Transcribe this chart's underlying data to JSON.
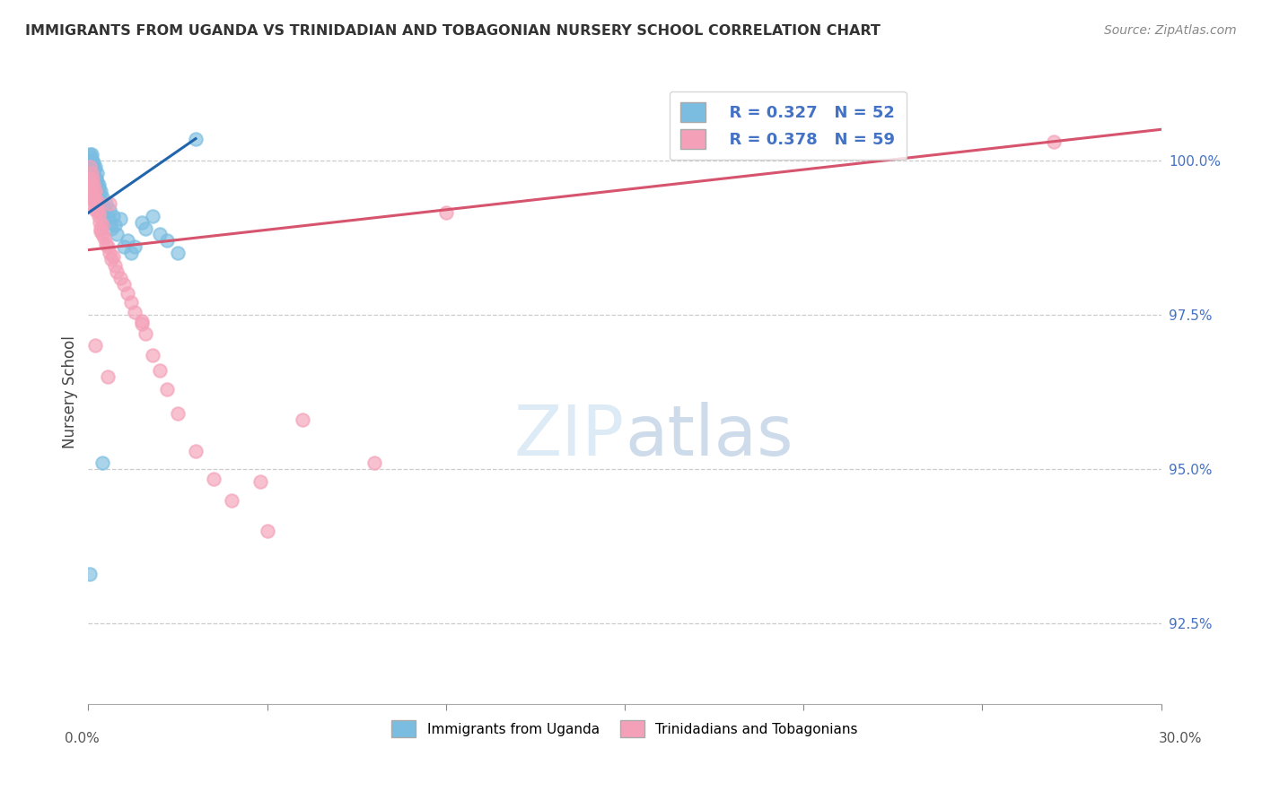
{
  "title": "IMMIGRANTS FROM UGANDA VS TRINIDADIAN AND TOBAGONIAN NURSERY SCHOOL CORRELATION CHART",
  "source": "Source: ZipAtlas.com",
  "ylabel": "Nursery School",
  "right_yticks": [
    92.5,
    95.0,
    97.5,
    100.0
  ],
  "right_ytick_labels": [
    "92.5%",
    "95.0%",
    "97.5%",
    "100.0%"
  ],
  "xlim": [
    0.0,
    30.0
  ],
  "ylim": [
    91.2,
    101.3
  ],
  "blue_color": "#7bbde0",
  "pink_color": "#f4a0b8",
  "blue_line_color": "#2166ac",
  "pink_line_color": "#d6546e",
  "legend_R_blue": "R = 0.327",
  "legend_N_blue": "N = 52",
  "legend_R_pink": "R = 0.378",
  "legend_N_pink": "N = 59",
  "legend_label_blue": "Immigrants from Uganda",
  "legend_label_pink": "Trinidadians and Tobagonians",
  "blue_line_x": [
    0.0,
    3.0
  ],
  "blue_line_y": [
    99.15,
    100.35
  ],
  "pink_line_x": [
    0.0,
    30.0
  ],
  "pink_line_y": [
    98.55,
    100.5
  ],
  "blue_x": [
    0.05,
    0.05,
    0.05,
    0.07,
    0.07,
    0.08,
    0.08,
    0.09,
    0.1,
    0.1,
    0.1,
    0.12,
    0.12,
    0.14,
    0.15,
    0.15,
    0.17,
    0.18,
    0.2,
    0.2,
    0.22,
    0.23,
    0.25,
    0.28,
    0.3,
    0.32,
    0.35,
    0.38,
    0.4,
    0.45,
    0.5,
    0.55,
    0.58,
    0.6,
    0.65,
    0.7,
    0.75,
    0.8,
    0.9,
    1.0,
    1.1,
    1.2,
    1.3,
    1.5,
    1.6,
    1.8,
    2.0,
    2.2,
    2.5,
    3.0,
    0.05,
    0.4
  ],
  "blue_y": [
    100.1,
    99.9,
    99.7,
    100.05,
    99.8,
    100.0,
    99.85,
    99.75,
    100.1,
    99.95,
    99.6,
    100.0,
    99.8,
    99.9,
    99.95,
    99.75,
    99.85,
    99.7,
    99.9,
    99.6,
    99.7,
    99.8,
    99.65,
    99.55,
    99.6,
    99.45,
    99.5,
    99.3,
    99.4,
    99.2,
    99.3,
    99.1,
    99.2,
    99.0,
    98.9,
    99.1,
    98.95,
    98.8,
    99.05,
    98.6,
    98.7,
    98.5,
    98.6,
    99.0,
    98.9,
    99.1,
    98.8,
    98.7,
    98.5,
    100.35,
    93.3,
    95.1
  ],
  "pink_x": [
    0.05,
    0.05,
    0.06,
    0.07,
    0.08,
    0.08,
    0.09,
    0.1,
    0.1,
    0.12,
    0.12,
    0.14,
    0.15,
    0.17,
    0.18,
    0.2,
    0.2,
    0.22,
    0.23,
    0.25,
    0.28,
    0.3,
    0.32,
    0.35,
    0.38,
    0.4,
    0.45,
    0.5,
    0.55,
    0.6,
    0.65,
    0.7,
    0.75,
    0.8,
    0.9,
    1.0,
    1.1,
    1.2,
    1.3,
    1.5,
    1.6,
    1.8,
    2.0,
    2.2,
    2.5,
    3.0,
    3.5,
    4.0,
    5.0,
    6.0,
    8.0,
    10.0,
    27.0,
    0.35,
    0.6,
    1.5,
    4.8,
    0.2,
    0.55
  ],
  "pink_y": [
    99.9,
    99.7,
    99.6,
    99.5,
    99.8,
    99.4,
    99.55,
    99.6,
    99.3,
    99.7,
    99.4,
    99.5,
    99.6,
    99.4,
    99.3,
    99.5,
    99.2,
    99.3,
    99.35,
    99.2,
    99.15,
    99.1,
    99.0,
    98.9,
    98.95,
    98.8,
    98.75,
    98.65,
    98.6,
    98.5,
    98.4,
    98.45,
    98.3,
    98.2,
    98.1,
    98.0,
    97.85,
    97.7,
    97.55,
    97.35,
    97.2,
    96.85,
    96.6,
    96.3,
    95.9,
    95.3,
    94.85,
    94.5,
    94.0,
    95.8,
    95.1,
    99.15,
    100.3,
    98.85,
    99.3,
    97.4,
    94.8,
    97.0,
    96.5
  ]
}
